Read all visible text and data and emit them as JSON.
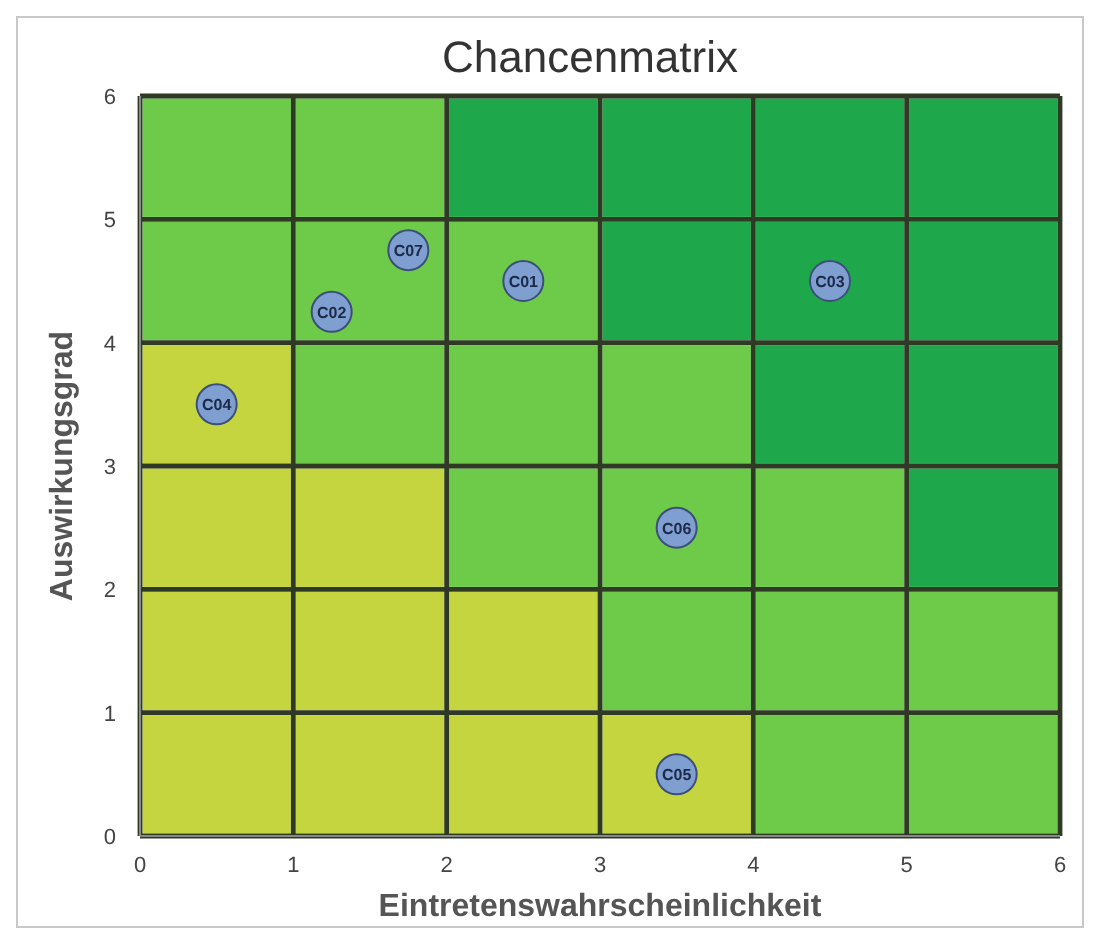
{
  "chart_data": {
    "type": "scatter",
    "title": "Chancenmatrix",
    "xlabel": "Eintretenswahrscheinlichkeit",
    "ylabel": "Auswirkungsgrad",
    "xlim": [
      0,
      6
    ],
    "ylim": [
      0,
      6
    ],
    "xticks": [
      0,
      1,
      2,
      3,
      4,
      5,
      6
    ],
    "yticks": [
      0,
      1,
      2,
      3,
      4,
      5,
      6
    ],
    "grid": true,
    "marker": "circle",
    "stacked": true,
    "series": [
      {
        "type": "bar",
        "x": [
          0.5,
          1.5,
          2.5,
          3.5,
          4.5,
          5.5
        ],
        "values": [
          1,
          1,
          1,
          1,
          1,
          1
        ],
        "colors": [
          "#c5d53f",
          "#c5d53f",
          "#c5d53f",
          "#c5d53f",
          "#6ecb4a",
          "#6ecb4a"
        ]
      },
      {
        "type": "bar",
        "x": [
          0.5,
          1.5,
          2.5,
          3.5,
          4.5,
          5.5
        ],
        "values": [
          1,
          1,
          1,
          1,
          1,
          1
        ],
        "colors": [
          "#c5d53f",
          "#c5d53f",
          "#c5d53f",
          "#6ecb4a",
          "#6ecb4a",
          "#6ecb4a"
        ]
      },
      {
        "type": "bar",
        "x": [
          0.5,
          1.5,
          2.5,
          3.5,
          4.5,
          5.5
        ],
        "values": [
          1,
          1,
          1,
          1,
          1,
          1
        ],
        "colors": [
          "#c5d53f",
          "#c5d53f",
          "#6ecb4a",
          "#6ecb4a",
          "#6ecb4a",
          "#1ea84b"
        ]
      },
      {
        "type": "bar",
        "x": [
          0.5,
          1.5,
          2.5,
          3.5,
          4.5,
          5.5
        ],
        "values": [
          1,
          1,
          1,
          1,
          1,
          1
        ],
        "colors": [
          "#c5d53f",
          "#6ecb4a",
          "#6ecb4a",
          "#6ecb4a",
          "#1ea84b",
          "#1ea84b"
        ]
      },
      {
        "type": "bar",
        "x": [
          0.5,
          1.5,
          2.5,
          3.5,
          4.5,
          5.5
        ],
        "values": [
          1,
          1,
          1,
          1,
          1,
          1
        ],
        "colors": [
          "#6ecb4a",
          "#6ecb4a",
          "#6ecb4a",
          "#1ea84b",
          "#1ea84b",
          "#1ea84b"
        ]
      },
      {
        "type": "bar",
        "x": [
          0.5,
          1.5,
          2.5,
          3.5,
          4.5,
          5.5
        ],
        "values": [
          1,
          1,
          1,
          1,
          1,
          1
        ],
        "colors": [
          "#6ecb4a",
          "#6ecb4a",
          "#1ea84b",
          "#1ea84b",
          "#1ea84b",
          "#1ea84b"
        ]
      },
      {
        "color": "#7f9fd0",
        "x": [
          2.5,
          1.25,
          4.5,
          0.5,
          3.5,
          3.5,
          1.75
        ],
        "values": [
          4.5,
          4.25,
          4.5,
          3.5,
          0.5,
          2.5,
          4.75
        ]
      }
    ],
    "annotations": [
      {
        "text": "C01",
        "x": 2.5,
        "y": 4.5
      },
      {
        "text": "C02",
        "x": 1.25,
        "y": 4.25
      },
      {
        "text": "C03",
        "x": 4.5,
        "y": 4.5
      },
      {
        "text": "C04",
        "x": 0.5,
        "y": 3.5
      },
      {
        "text": "C05",
        "x": 3.5,
        "y": 0.5
      },
      {
        "text": "C06",
        "x": 3.5,
        "y": 2.5
      },
      {
        "text": "C07",
        "x": 1.75,
        "y": 4.75
      }
    ]
  }
}
